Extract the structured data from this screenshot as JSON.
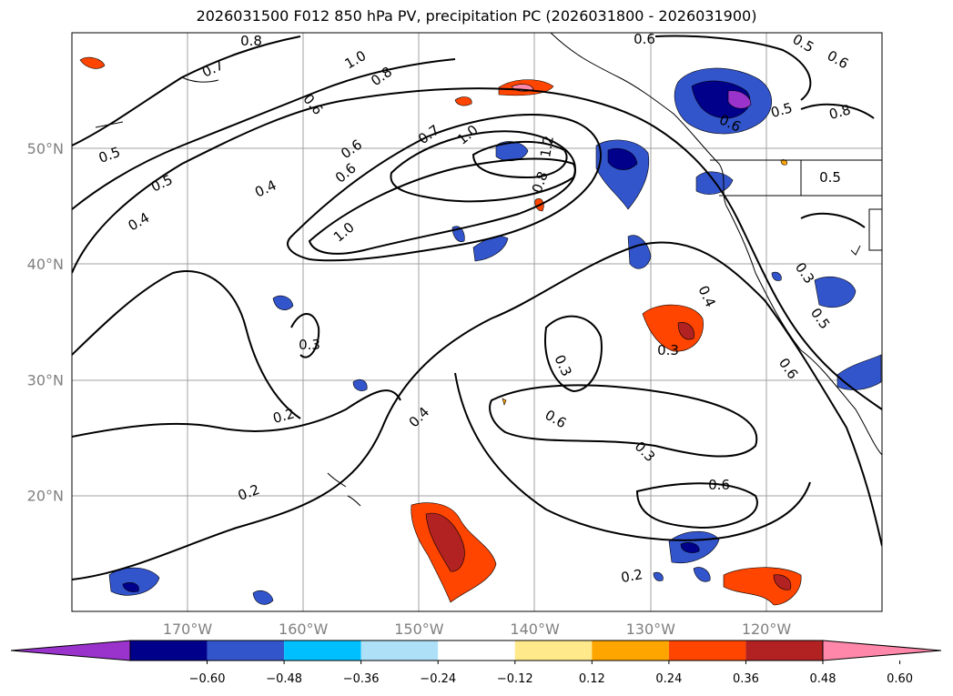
{
  "title": "2026031500 F012 850 hPa PV, precipitation PC (2026031800 - 2026031900)",
  "map": {
    "lat_ticks": [
      {
        "label": "50°N",
        "lat": 50
      },
      {
        "label": "40°N",
        "lat": 40
      },
      {
        "label": "30°N",
        "lat": 30
      },
      {
        "label": "20°N",
        "lat": 20
      }
    ],
    "lon_ticks": [
      {
        "label": "170°W",
        "lon": -170
      },
      {
        "label": "160°W",
        "lon": -160
      },
      {
        "label": "150°W",
        "lon": -150
      },
      {
        "label": "140°W",
        "lon": -140
      },
      {
        "label": "130°W",
        "lon": -130
      },
      {
        "label": "120°W",
        "lon": -120
      }
    ],
    "contour_labels": [
      "0.8",
      "0.7",
      "1.0",
      "0.8",
      "0.6",
      "0.6",
      "0.5",
      "0.6",
      "0.8",
      "0.5",
      "0.4",
      "0.4",
      "0.5",
      "0.7",
      "1.0",
      "1.2",
      "0.8",
      "0.6",
      "1.0",
      "0.3",
      "0.4",
      "0.3",
      "0.3",
      "0.2",
      "0.2",
      "0.4",
      "0.3",
      "0.6",
      "0.5",
      "0.6",
      "0.3",
      "0.6",
      "0.5",
      "0.6",
      "0.5",
      "0.6",
      "0.2"
    ]
  },
  "colorbar": {
    "colors": [
      "#9933cc",
      "#00008b",
      "#3355cc",
      "#00bfff",
      "#aee0f8",
      "#ffffff",
      "#ffe98a",
      "#ffa500",
      "#ff4500",
      "#b22222",
      "#ff88aa"
    ],
    "tick_labels": [
      "−0.60",
      "−0.48",
      "−0.36",
      "−0.24",
      "−0.12",
      "0.12",
      "0.24",
      "0.36",
      "0.48",
      "0.60"
    ]
  }
}
